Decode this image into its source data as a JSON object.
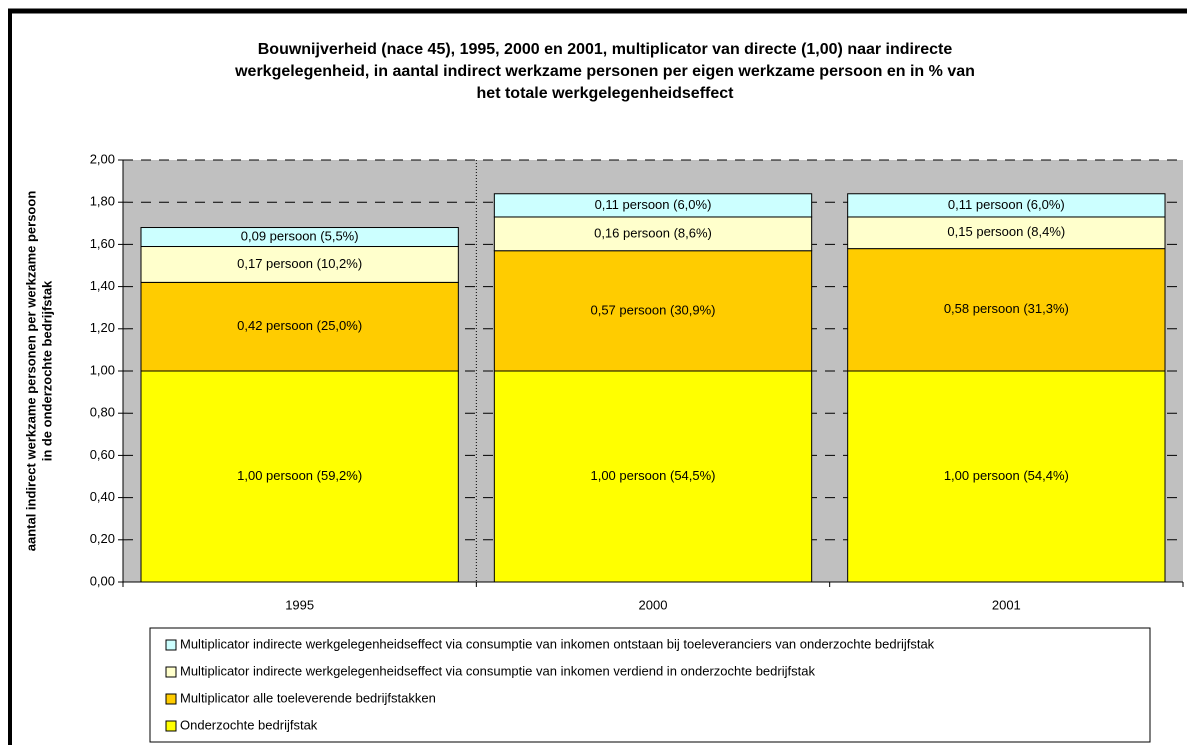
{
  "chart_data": {
    "type": "stacked-bar",
    "title": [
      "Bouwnijverheid (nace 45), 1995, 2000 en 2001, multiplicator van directe (1,00) naar indirecte",
      "werkgelegenheid, in aantal indirect werkzame personen per eigen werkzame persoon en in % van",
      "het totale werkgelegenheidseffect"
    ],
    "ylabel": [
      "aantal indirect werkzame personen per werkzame persoon",
      "in de onderzochte bedrijfstak"
    ],
    "categories": [
      "1995",
      "2000",
      "2001"
    ],
    "series": [
      {
        "name": "Onderzochte bedrijfstak",
        "color": "#ffff00",
        "values": [
          1.0,
          1.0,
          1.0
        ],
        "value_labels": [
          "1,00 persoon (59,2%)",
          "1,00 persoon (54,5%)",
          "1,00 persoon (54,4%)"
        ]
      },
      {
        "name": "Multiplicator alle toeleverende bedrijfstakken",
        "color": "#ffcc00",
        "values": [
          0.42,
          0.57,
          0.58
        ],
        "value_labels": [
          "0,42 persoon (25,0%)",
          "0,57 persoon (30,9%)",
          "0,58 persoon (31,3%)"
        ]
      },
      {
        "name": "Multiplicator indirecte werkgelegenheidseffect via consumptie van inkomen verdiend in onderzochte bedrijfstak",
        "color": "#ffffcc",
        "values": [
          0.17,
          0.16,
          0.15
        ],
        "value_labels": [
          "0,17 persoon (10,2%)",
          "0,16 persoon (8,6%)",
          "0,15 persoon (8,4%)"
        ]
      },
      {
        "name": "Multiplicator indirecte werkgelegenheidseffect via consumptie van inkomen ontstaan bij toeleveranciers van onderzochte bedrijfstak",
        "color": "#ccffff",
        "values": [
          0.09,
          0.11,
          0.11
        ],
        "value_labels": [
          "0,09 persoon (5,5%)",
          "0,11 persoon (6,0%)",
          "0,11 persoon (6,0%)"
        ]
      }
    ],
    "ylim": [
      0,
      2
    ],
    "yticks": [
      {
        "value": 0,
        "label": "0,00"
      },
      {
        "value": 0.2,
        "label": "0,20"
      },
      {
        "value": 0.4,
        "label": "0,40"
      },
      {
        "value": 0.6,
        "label": "0,60"
      },
      {
        "value": 0.8,
        "label": "0,80"
      },
      {
        "value": 1,
        "label": "1,00"
      },
      {
        "value": 1.2,
        "label": "1,20"
      },
      {
        "value": 1.4,
        "label": "1,40"
      },
      {
        "value": 1.6,
        "label": "1,60"
      },
      {
        "value": 1.8,
        "label": "1,80"
      },
      {
        "value": 2,
        "label": "2,00"
      }
    ],
    "grid": true,
    "plot_background": "#c0c0c0"
  }
}
